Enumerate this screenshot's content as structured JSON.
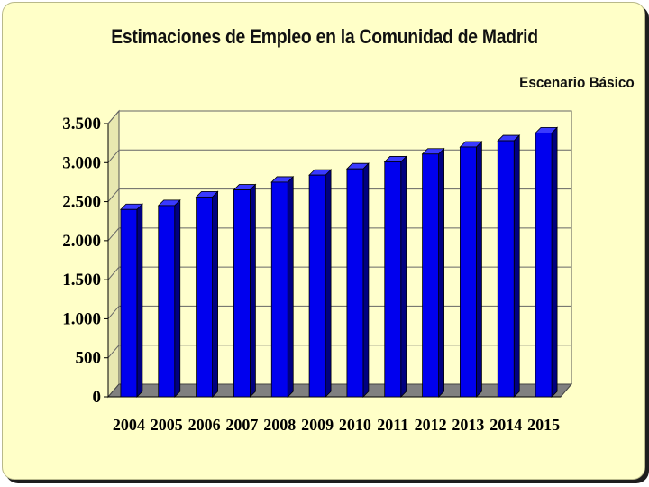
{
  "chart_data": {
    "type": "bar",
    "title": "Estimaciones de Empleo en la Comunidad de Madrid",
    "subtitle": "Escenario Básico",
    "xlabel": "",
    "ylabel": "",
    "categories": [
      "2004",
      "2005",
      "2006",
      "2007",
      "2008",
      "2009",
      "2010",
      "2011",
      "2012",
      "2013",
      "2014",
      "2015"
    ],
    "values": [
      2400,
      2450,
      2560,
      2650,
      2750,
      2840,
      2920,
      3010,
      3110,
      3200,
      3280,
      3380
    ],
    "ylim": [
      0,
      3500
    ],
    "yticks": [
      0,
      500,
      1000,
      1500,
      2000,
      2500,
      3000,
      3500
    ],
    "ytick_labels": [
      "0",
      "500",
      "1.000",
      "1.500",
      "2.000",
      "2.500",
      "3.000",
      "3.500"
    ],
    "grid": true,
    "legend": "none",
    "colors": {
      "bar": "#0000ee",
      "bar_dark": "#000080",
      "background": "#ffffc8",
      "floor": "#808080",
      "wall": "#ffffcc"
    }
  }
}
